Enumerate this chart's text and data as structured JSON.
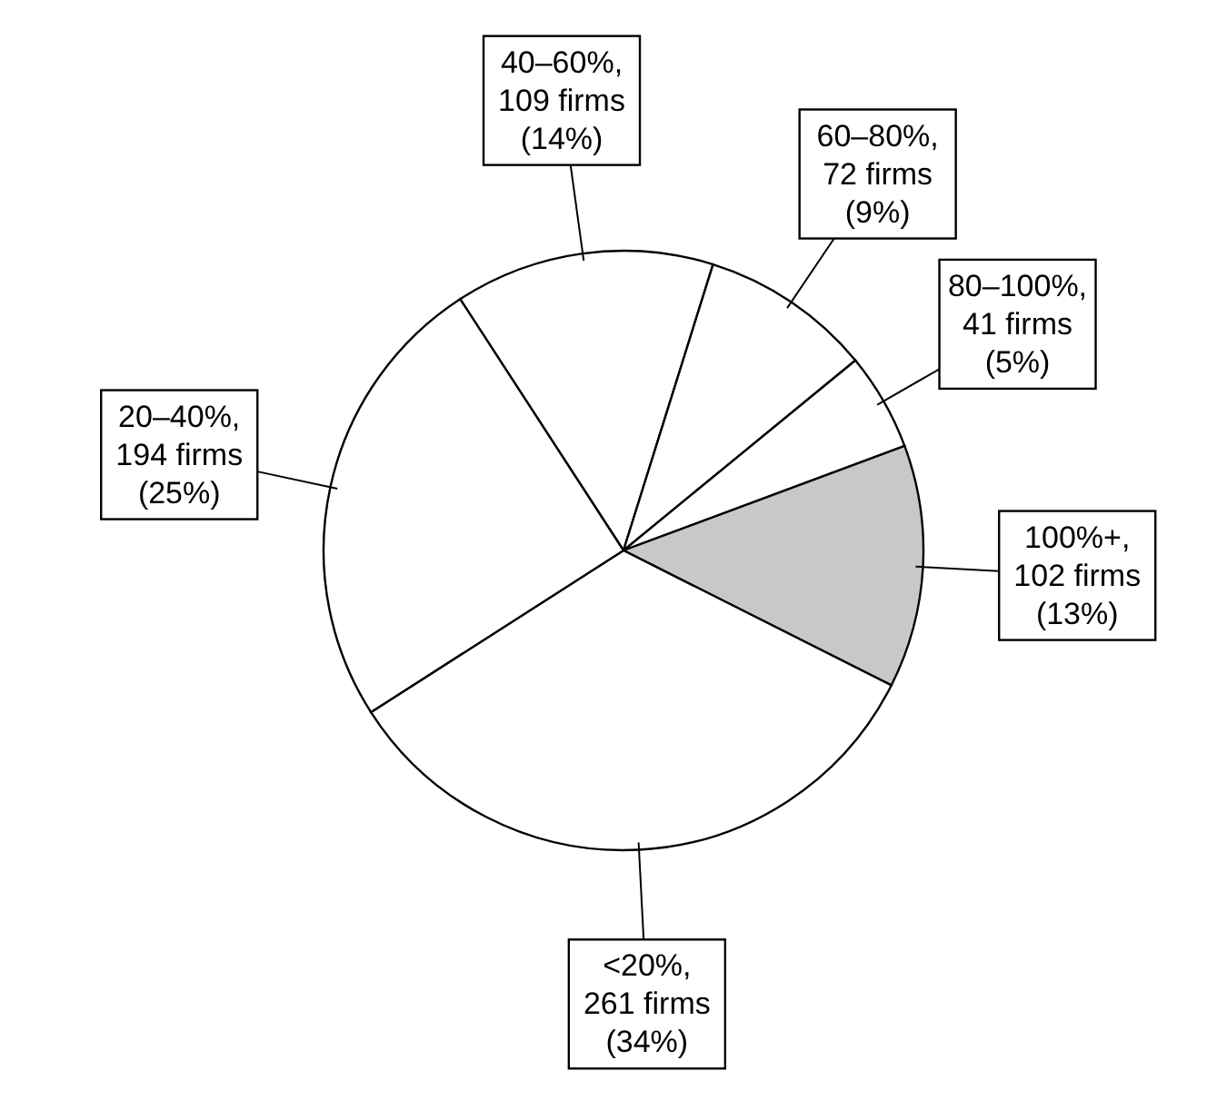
{
  "chart_data": {
    "type": "pie",
    "categories": [
      "40–60%",
      "60–80%",
      "80–100%",
      "100%+",
      "<20%",
      "20–40%"
    ],
    "values": [
      109,
      72,
      41,
      102,
      261,
      194
    ],
    "value_labels": [
      ",\n109 firms\n(14%)",
      ",\n72 firms\n(9%)",
      ",\n41 firms\n(5%)",
      ",\n102 firms\n(13%)",
      ",\n261 firms\n(34%)",
      ",\n194 firms\n(25%)"
    ],
    "colors": [
      "#ffffff",
      "#ffffff",
      "#ffffff",
      "#c8c8c8",
      "#ffffff",
      "#ffffff"
    ],
    "legend": false
  }
}
